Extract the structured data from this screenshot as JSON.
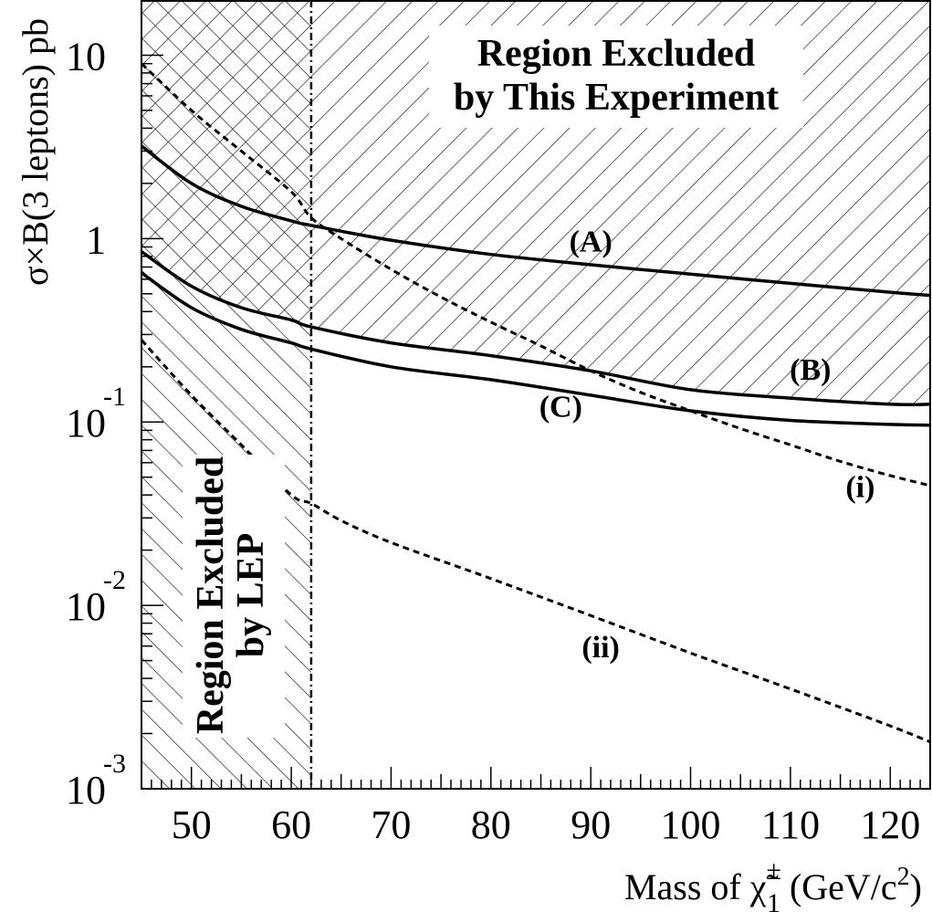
{
  "chart_data": {
    "type": "line",
    "title": "",
    "xlabel": {
      "prefix": "Mass of",
      "symbol": "χ̃",
      "superscript": "±",
      "subscript": "1",
      "units": "(GeV/c",
      "units_exponent": "2",
      "units_close": ")"
    },
    "ylabel": "σ×B(3 leptons) pb",
    "xlim": [
      45,
      124
    ],
    "ylim": [
      0.001,
      20
    ],
    "yscale": "log",
    "x_ticks": [
      50,
      60,
      70,
      80,
      90,
      100,
      110,
      120
    ],
    "y_ticks": [
      {
        "value": 10,
        "base": "10",
        "exponent": ""
      },
      {
        "value": 1,
        "base": "1",
        "exponent": ""
      },
      {
        "value": 0.1,
        "base": "10",
        "exponent": "-1"
      },
      {
        "value": 0.01,
        "base": "10",
        "exponent": "-2"
      },
      {
        "value": 0.001,
        "base": "10",
        "exponent": "-3"
      }
    ],
    "grid": false,
    "lep_limit": 62,
    "regions": [
      {
        "label_lines": [
          "Region Excluded",
          "by This Experiment"
        ]
      },
      {
        "label_lines": [
          "Region Excluded",
          "by LEP"
        ]
      }
    ],
    "series": [
      {
        "name": "(A)",
        "style": "solid",
        "x": [
          45,
          50,
          55,
          60,
          62,
          70,
          80,
          90,
          100,
          110,
          120,
          124
        ],
        "y": [
          3.2,
          2.0,
          1.5,
          1.25,
          1.18,
          0.98,
          0.82,
          0.72,
          0.64,
          0.57,
          0.51,
          0.49
        ]
      },
      {
        "name": "(B)",
        "style": "solid",
        "x": [
          45,
          50,
          55,
          60,
          62,
          70,
          80,
          90,
          100,
          110,
          120,
          124
        ],
        "y": [
          0.85,
          0.55,
          0.42,
          0.36,
          0.33,
          0.27,
          0.23,
          0.19,
          0.15,
          0.135,
          0.125,
          0.125
        ]
      },
      {
        "name": "(C)",
        "style": "solid",
        "x": [
          45,
          50,
          55,
          60,
          62,
          70,
          80,
          90,
          100,
          110,
          120,
          124
        ],
        "y": [
          0.65,
          0.42,
          0.32,
          0.27,
          0.25,
          0.2,
          0.17,
          0.14,
          0.115,
          0.102,
          0.097,
          0.096
        ]
      },
      {
        "name": "(i)",
        "style": "dashed",
        "x": [
          45,
          50,
          55,
          60,
          62,
          65,
          70,
          75,
          80,
          85,
          90,
          95,
          100,
          105,
          110,
          115,
          120,
          124
        ],
        "y": [
          9.0,
          5.0,
          3.0,
          1.8,
          1.3,
          1.0,
          0.68,
          0.48,
          0.35,
          0.26,
          0.19,
          0.145,
          0.115,
          0.092,
          0.075,
          0.061,
          0.051,
          0.045
        ]
      },
      {
        "name": "(ii)",
        "style": "dashed",
        "x": [
          45,
          50,
          55,
          60,
          62,
          65,
          70,
          80,
          90,
          100,
          110,
          120,
          124
        ],
        "y": [
          0.28,
          0.14,
          0.075,
          0.04,
          0.036,
          0.029,
          0.022,
          0.014,
          0.0088,
          0.0055,
          0.0035,
          0.0022,
          0.0018
        ]
      }
    ],
    "curve_labels": [
      {
        "text": "(A)",
        "x": 90,
        "y": 0.85
      },
      {
        "text": "(B)",
        "x": 112,
        "y": 0.17
      },
      {
        "text": "(C)",
        "x": 87,
        "y": 0.107
      },
      {
        "text": "(i)",
        "x": 117,
        "y": 0.039
      },
      {
        "text": "(ii)",
        "x": 91,
        "y": 0.0052
      }
    ]
  }
}
